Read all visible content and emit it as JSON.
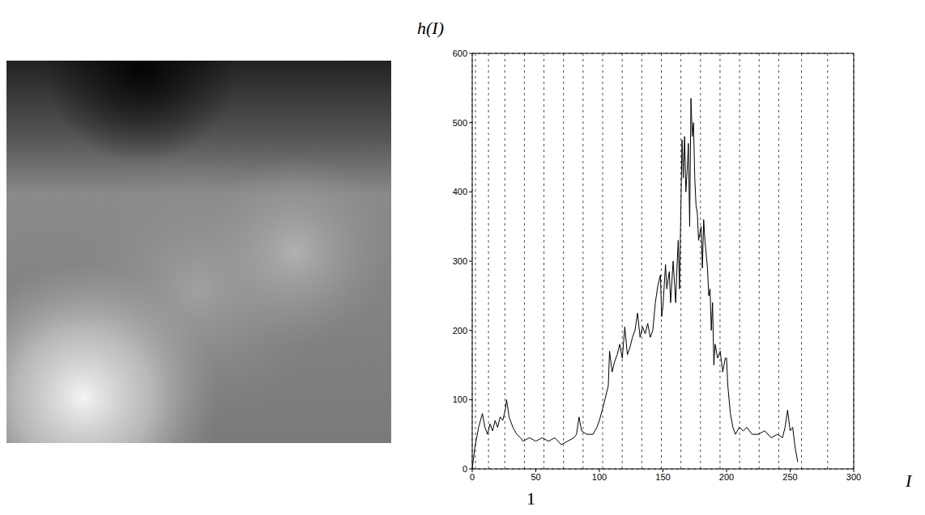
{
  "chart_data": {
    "type": "line",
    "xlabel": "I",
    "ylabel": "h(I)",
    "annotations": [
      "1"
    ],
    "color": "#000000",
    "grid": true,
    "xlim": [
      0,
      300
    ],
    "xticks": [
      0,
      50,
      100,
      150,
      200,
      250,
      300
    ],
    "ylim": [
      0,
      600
    ],
    "yticks": [
      0,
      100,
      200,
      300,
      400,
      500,
      600
    ],
    "x": [
      0,
      2,
      5,
      8,
      10,
      12,
      14,
      16,
      18,
      20,
      22,
      24,
      26,
      27,
      29,
      32,
      35,
      38,
      40,
      45,
      50,
      55,
      60,
      65,
      70,
      75,
      80,
      82,
      84,
      86,
      90,
      95,
      98,
      100,
      103,
      105,
      107,
      108,
      110,
      112,
      114,
      116,
      118,
      120,
      122,
      124,
      126,
      128,
      130,
      132,
      134,
      136,
      138,
      140,
      142,
      144,
      146,
      148,
      149,
      150,
      152,
      153,
      155,
      156,
      158,
      160,
      161,
      162,
      163,
      165,
      166,
      167,
      168,
      169,
      170,
      171,
      172,
      173,
      174,
      175,
      176,
      177,
      178,
      180,
      181,
      182,
      183,
      185,
      186,
      187,
      188,
      189,
      190,
      191,
      193,
      195,
      197,
      199,
      200,
      201,
      203,
      205,
      207,
      210,
      213,
      216,
      220,
      225,
      230,
      235,
      240,
      244,
      246,
      248,
      250,
      252,
      254,
      256
    ],
    "values": [
      0,
      30,
      60,
      80,
      60,
      50,
      65,
      55,
      70,
      60,
      75,
      70,
      85,
      100,
      75,
      60,
      50,
      45,
      40,
      45,
      40,
      45,
      40,
      45,
      35,
      40,
      45,
      50,
      75,
      55,
      50,
      50,
      60,
      70,
      90,
      105,
      120,
      170,
      140,
      155,
      165,
      180,
      160,
      205,
      165,
      175,
      190,
      200,
      225,
      190,
      205,
      195,
      210,
      190,
      200,
      240,
      265,
      280,
      220,
      235,
      295,
      260,
      285,
      240,
      300,
      240,
      290,
      330,
      260,
      475,
      420,
      480,
      400,
      430,
      470,
      350,
      535,
      480,
      500,
      420,
      380,
      370,
      330,
      350,
      290,
      360,
      330,
      290,
      250,
      260,
      200,
      240,
      150,
      180,
      160,
      170,
      140,
      160,
      160,
      120,
      80,
      60,
      50,
      60,
      55,
      60,
      50,
      50,
      55,
      45,
      50,
      45,
      60,
      85,
      55,
      60,
      30,
      10
    ]
  }
}
